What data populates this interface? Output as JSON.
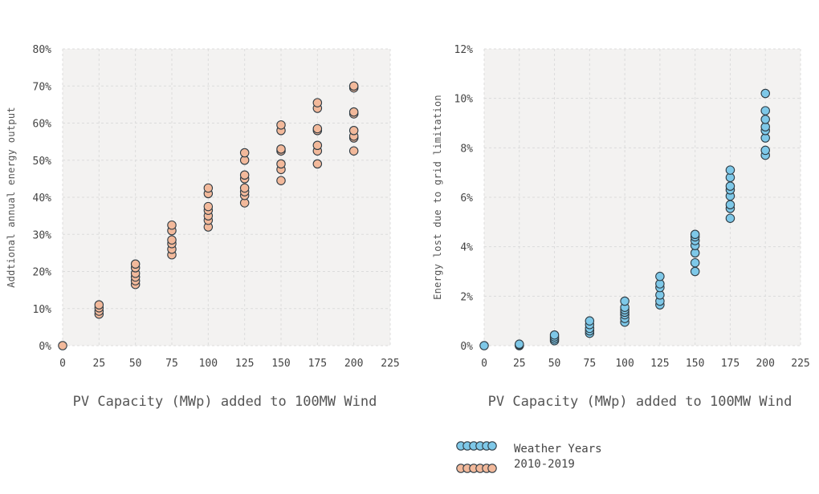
{
  "colors": {
    "blue_fill": "#7ec8e8",
    "orange_fill": "#f2b99b",
    "marker_stroke": "#2f3b43",
    "plot_bg": "#f3f2f1",
    "grid": "#dcdcdc"
  },
  "legend": {
    "line1": "Weather Years",
    "line2": "2010-2019"
  },
  "chart_data": [
    {
      "type": "scatter",
      "xlabel": "PV Capacity (MWp) added to 100MW Wind",
      "ylabel": "Addtional annual energy output",
      "xlim": [
        0,
        225
      ],
      "ylim": [
        0,
        80
      ],
      "x_ticks": [
        "0",
        "25",
        "50",
        "75",
        "100",
        "125",
        "150",
        "175",
        "200",
        "225"
      ],
      "y_ticks": [
        "0%",
        "10%",
        "20%",
        "30%",
        "40%",
        "50%",
        "60%",
        "70%",
        "80%"
      ],
      "grid": true,
      "series": [
        {
          "color": "orange",
          "points": [
            [
              0,
              0
            ],
            [
              25,
              8.5
            ],
            [
              25,
              9.3
            ],
            [
              25,
              10.2
            ],
            [
              25,
              11.0
            ],
            [
              50,
              16.5
            ],
            [
              50,
              17.5
            ],
            [
              50,
              18.5
            ],
            [
              50,
              19.5
            ],
            [
              50,
              21.0
            ],
            [
              50,
              22.0
            ],
            [
              75,
              24.5
            ],
            [
              75,
              26.0
            ],
            [
              75,
              27.5
            ],
            [
              75,
              28.5
            ],
            [
              75,
              31.0
            ],
            [
              75,
              32.5
            ],
            [
              100,
              32.0
            ],
            [
              100,
              33.8
            ],
            [
              100,
              35.0
            ],
            [
              100,
              36.5
            ],
            [
              100,
              37.5
            ],
            [
              100,
              41.0
            ],
            [
              100,
              42.5
            ],
            [
              125,
              38.5
            ],
            [
              125,
              40.5
            ],
            [
              125,
              41.5
            ],
            [
              125,
              42.5
            ],
            [
              125,
              45.0
            ],
            [
              125,
              46.0
            ],
            [
              125,
              50.0
            ],
            [
              125,
              52.0
            ],
            [
              150,
              44.5
            ],
            [
              150,
              47.5
            ],
            [
              150,
              49.0
            ],
            [
              150,
              52.5
            ],
            [
              150,
              53.0
            ],
            [
              150,
              58.0
            ],
            [
              150,
              59.5
            ],
            [
              175,
              49.0
            ],
            [
              175,
              52.5
            ],
            [
              175,
              54.0
            ],
            [
              175,
              58.0
            ],
            [
              175,
              58.5
            ],
            [
              175,
              64.0
            ],
            [
              175,
              65.5
            ],
            [
              200,
              52.5
            ],
            [
              200,
              56.0
            ],
            [
              200,
              56.5
            ],
            [
              200,
              58.0
            ],
            [
              200,
              62.5
            ],
            [
              200,
              63.0
            ],
            [
              200,
              69.5
            ],
            [
              200,
              70.0
            ]
          ]
        }
      ]
    },
    {
      "type": "scatter",
      "xlabel": "PV Capacity (MWp) added to 100MW Wind",
      "ylabel": "Energy lost due to grid limitation",
      "xlim": [
        0,
        225
      ],
      "ylim": [
        0,
        12
      ],
      "x_ticks": [
        "0",
        "25",
        "50",
        "75",
        "100",
        "125",
        "150",
        "175",
        "200",
        "225"
      ],
      "y_ticks": [
        "0%",
        "2%",
        "4%",
        "6%",
        "8%",
        "10%",
        "12%"
      ],
      "grid": true,
      "series": [
        {
          "color": "blue",
          "points": [
            [
              0,
              0
            ],
            [
              25,
              0.0
            ],
            [
              25,
              0.03
            ],
            [
              25,
              0.06
            ],
            [
              50,
              0.2
            ],
            [
              50,
              0.27
            ],
            [
              50,
              0.35
            ],
            [
              50,
              0.43
            ],
            [
              75,
              0.5
            ],
            [
              75,
              0.6
            ],
            [
              75,
              0.7
            ],
            [
              75,
              0.85
            ],
            [
              75,
              1.0
            ],
            [
              100,
              0.95
            ],
            [
              100,
              1.1
            ],
            [
              100,
              1.25
            ],
            [
              100,
              1.35
            ],
            [
              100,
              1.45
            ],
            [
              100,
              1.55
            ],
            [
              100,
              1.8
            ],
            [
              125,
              1.65
            ],
            [
              125,
              1.8
            ],
            [
              125,
              2.05
            ],
            [
              125,
              2.35
            ],
            [
              125,
              2.5
            ],
            [
              125,
              2.8
            ],
            [
              150,
              3.0
            ],
            [
              150,
              3.35
            ],
            [
              150,
              3.75
            ],
            [
              150,
              4.05
            ],
            [
              150,
              4.25
            ],
            [
              150,
              4.4
            ],
            [
              150,
              4.5
            ],
            [
              175,
              5.15
            ],
            [
              175,
              5.55
            ],
            [
              175,
              5.7
            ],
            [
              175,
              6.05
            ],
            [
              175,
              6.3
            ],
            [
              175,
              6.45
            ],
            [
              175,
              6.8
            ],
            [
              175,
              7.1
            ],
            [
              200,
              7.7
            ],
            [
              200,
              7.9
            ],
            [
              200,
              8.4
            ],
            [
              200,
              8.7
            ],
            [
              200,
              8.85
            ],
            [
              200,
              9.15
            ],
            [
              200,
              9.5
            ],
            [
              200,
              10.2
            ]
          ]
        }
      ]
    }
  ]
}
